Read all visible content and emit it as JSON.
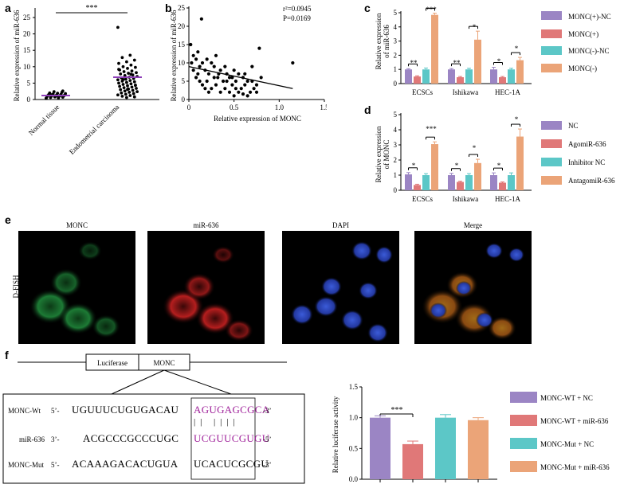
{
  "colors": {
    "purple": "#9b85c4",
    "red": "#e07878",
    "teal": "#5cc7c7",
    "orange": "#eba478",
    "magenta": "#a0239b"
  },
  "panel_labels": {
    "a": "a",
    "b": "b",
    "c": "c",
    "d": "d",
    "e": "e",
    "f": "f"
  },
  "panel_a": {
    "ylabel": "Relative expression of miR-636",
    "xticks": [
      "Normal tissue",
      "Endometrial carcinoma"
    ],
    "sig": "***"
  },
  "panel_b": {
    "ylabel": "Relative expression of miR-636",
    "xlabel": "Relative expression of MONC",
    "stat_r2": "r²=0.0945",
    "stat_p": "P=0.0169"
  },
  "panel_c": {
    "ylabel1": "Relative expression",
    "ylabel2": "of miR-636",
    "groups": [
      "ECSCs",
      "Ishikawa",
      "HEC-1A"
    ],
    "sig": [
      [
        "**",
        "***"
      ],
      [
        "**",
        "*"
      ],
      [
        "*",
        "*"
      ]
    ],
    "legend": [
      "MONC(+)-NC",
      "MONC(+)",
      "MONC(-)-NC",
      "MONC(-)"
    ]
  },
  "panel_d": {
    "ylabel1": "Relative expression",
    "ylabel2": "of MONC",
    "groups": [
      "ECSCs",
      "Ishikawa",
      "HEC-1A"
    ],
    "sig": [
      [
        "*",
        "***"
      ],
      [
        "*",
        "*"
      ],
      [
        "*",
        "*"
      ]
    ],
    "legend": [
      "NC",
      "AgomiR-636",
      "Inhibitor NC",
      "AntagomiR-636"
    ]
  },
  "panel_e": {
    "row_label": "D-FISH",
    "titles": [
      "MONC",
      "miR-636",
      "DAPI",
      "Merge"
    ]
  },
  "panel_f": {
    "construct": {
      "left": "Luciferase",
      "right": "MONC"
    },
    "rows": [
      {
        "label": "MONC-Wt",
        "p1": "5’-",
        "seq": "UGUUUCUGUGACAU",
        "box": "AGUGAGCGCA",
        "end": "-3’"
      },
      {
        "label": "miR-636",
        "p1": "3’-",
        "seq": "ACGCCCGCCCUGC",
        "box": "UCGUUCGUGU",
        "end": "-5’"
      },
      {
        "label": "MONC-Mut",
        "p1": "5’-",
        "seq": "ACAAAGACACUGUA",
        "box": "UCACUCGCGU",
        "end": "-3’"
      }
    ],
    "pairs": "| |   | | | |",
    "ylabel": "Relative luciferase activity",
    "sig": "***",
    "legend": [
      "MONC-WT + NC",
      "MONC-WT + miR-636",
      "MONC-Mut + NC",
      "MONC-Mut + miR-636"
    ]
  },
  "chart_data": [
    {
      "type": "scatter",
      "title": "a",
      "ylabel": "Relative expression of miR-636",
      "categories": [
        "Normal tissue",
        "Endometrial carcinoma"
      ],
      "ylim": [
        0,
        25
      ],
      "yticks": [
        0,
        5,
        10,
        15,
        20,
        25
      ],
      "means": [
        1.2,
        6.8
      ],
      "points": {
        "Normal tissue": [
          0.3,
          0.5,
          0.6,
          0.7,
          0.8,
          0.9,
          1.0,
          1.0,
          1.1,
          1.1,
          1.2,
          1.2,
          1.3,
          1.3,
          1.4,
          1.5,
          1.6,
          1.7,
          1.8,
          1.9,
          2.0,
          2.2,
          2.4,
          0.4,
          0.9,
          1.5,
          2.6
        ],
        "Endometrial carcinoma": [
          22.0,
          13.5,
          12.8,
          12.0,
          11.5,
          11.0,
          10.5,
          10.0,
          9.8,
          9.5,
          9.0,
          8.7,
          8.5,
          8.2,
          8.0,
          7.8,
          7.5,
          7.3,
          7.0,
          6.8,
          6.6,
          6.4,
          6.2,
          6.0,
          5.8,
          5.6,
          5.4,
          5.2,
          5.0,
          4.8,
          4.6,
          4.4,
          4.2,
          4.0,
          3.8,
          3.6,
          3.4,
          3.2,
          3.0,
          2.8,
          2.6,
          2.4,
          2.2,
          2.0,
          1.8,
          1.6,
          1.4,
          1.2,
          1.0,
          0.8,
          0.6,
          9.2,
          7.7,
          6.1,
          4.3,
          3.1
        ]
      }
    },
    {
      "type": "scatter",
      "title": "b",
      "xlabel": "Relative expression of MONC",
      "ylabel": "Relative expression of miR-636",
      "xlim": [
        0,
        1.5
      ],
      "ylim": [
        0,
        25
      ],
      "xticks": [
        0,
        0.5,
        1.0,
        1.5
      ],
      "yticks": [
        0,
        5,
        10,
        15,
        20,
        25
      ],
      "points": [
        [
          0.02,
          15
        ],
        [
          0.05,
          12
        ],
        [
          0.08,
          11
        ],
        [
          0.1,
          13
        ],
        [
          0.12,
          9
        ],
        [
          0.14,
          22
        ],
        [
          0.15,
          10
        ],
        [
          0.18,
          8
        ],
        [
          0.2,
          11
        ],
        [
          0.22,
          7
        ],
        [
          0.25,
          10
        ],
        [
          0.28,
          9
        ],
        [
          0.3,
          12
        ],
        [
          0.32,
          6
        ],
        [
          0.35,
          8
        ],
        [
          0.38,
          5
        ],
        [
          0.4,
          9
        ],
        [
          0.42,
          7
        ],
        [
          0.45,
          6
        ],
        [
          0.48,
          4
        ],
        [
          0.5,
          8
        ],
        [
          0.52,
          5
        ],
        [
          0.55,
          7
        ],
        [
          0.58,
          3
        ],
        [
          0.6,
          6
        ],
        [
          0.62,
          4
        ],
        [
          0.65,
          5
        ],
        [
          0.68,
          2
        ],
        [
          0.7,
          9
        ],
        [
          0.72,
          3
        ],
        [
          0.75,
          4
        ],
        [
          0.78,
          14
        ],
        [
          0.8,
          6
        ],
        [
          0.05,
          8
        ],
        [
          0.08,
          6
        ],
        [
          0.12,
          5
        ],
        [
          0.15,
          4
        ],
        [
          0.18,
          3
        ],
        [
          0.22,
          2
        ],
        [
          0.25,
          3
        ],
        [
          0.3,
          4
        ],
        [
          0.35,
          2
        ],
        [
          0.4,
          3
        ],
        [
          0.45,
          2
        ],
        [
          0.5,
          1
        ],
        [
          0.55,
          2
        ],
        [
          0.6,
          1.5
        ],
        [
          0.65,
          1
        ],
        [
          1.15,
          10
        ],
        [
          0.03,
          10
        ],
        [
          0.1,
          7
        ],
        [
          0.2,
          5
        ],
        [
          0.28,
          6
        ],
        [
          0.33,
          7
        ],
        [
          0.42,
          5
        ],
        [
          0.48,
          6
        ],
        [
          0.52,
          3
        ],
        [
          0.62,
          7
        ],
        [
          0.7,
          5
        ],
        [
          0.75,
          2
        ]
      ],
      "fit": {
        "x": [
          0,
          1.15
        ],
        "y": [
          9,
          3
        ]
      }
    },
    {
      "type": "bar",
      "title": "c",
      "ylabel": "Relative expression of miR-636",
      "categories": [
        "ECSCs",
        "Ishikawa",
        "HEC-1A"
      ],
      "ylim": [
        0,
        5
      ],
      "yticks": [
        0,
        1,
        2,
        3,
        4,
        5
      ],
      "series": [
        {
          "name": "MONC(+)-NC",
          "values": [
            1.0,
            1.0,
            1.0
          ],
          "err": [
            0.05,
            0.06,
            0.15
          ]
        },
        {
          "name": "MONC(+)",
          "values": [
            0.5,
            0.45,
            0.45
          ],
          "err": [
            0.05,
            0.05,
            0.05
          ]
        },
        {
          "name": "MONC(-)-NC",
          "values": [
            1.0,
            1.0,
            1.0
          ],
          "err": [
            0.1,
            0.08,
            0.08
          ]
        },
        {
          "name": "MONC(-)",
          "values": [
            4.85,
            3.1,
            1.65
          ],
          "err": [
            0.12,
            0.6,
            0.2
          ]
        }
      ]
    },
    {
      "type": "bar",
      "title": "d",
      "ylabel": "Relative expression of MONC",
      "categories": [
        "ECSCs",
        "Ishikawa",
        "HEC-1A"
      ],
      "ylim": [
        0,
        5
      ],
      "yticks": [
        0,
        1,
        2,
        3,
        4,
        5
      ],
      "series": [
        {
          "name": "NC",
          "values": [
            1.05,
            1.0,
            1.0
          ],
          "err": [
            0.12,
            0.12,
            0.15
          ]
        },
        {
          "name": "AgomiR-636",
          "values": [
            0.35,
            0.55,
            0.5
          ],
          "err": [
            0.05,
            0.05,
            0.05
          ]
        },
        {
          "name": "Inhibitor NC",
          "values": [
            1.0,
            1.0,
            1.0
          ],
          "err": [
            0.1,
            0.1,
            0.15
          ]
        },
        {
          "name": "AntagomiR-636",
          "values": [
            3.05,
            1.8,
            3.55
          ],
          "err": [
            0.15,
            0.25,
            0.5
          ]
        }
      ]
    },
    {
      "type": "bar",
      "title": "f",
      "ylabel": "Relative luciferase activity",
      "categories": [
        "MONC-WT + NC",
        "MONC-WT + miR-636",
        "MONC-Mut + NC",
        "MONC-Mut + miR-636"
      ],
      "ylim": [
        0,
        1.5
      ],
      "yticks": [
        0,
        0.5,
        1.0,
        1.5
      ],
      "values": [
        1.0,
        0.57,
        1.0,
        0.96
      ],
      "err": [
        0.03,
        0.05,
        0.05,
        0.04
      ]
    }
  ]
}
